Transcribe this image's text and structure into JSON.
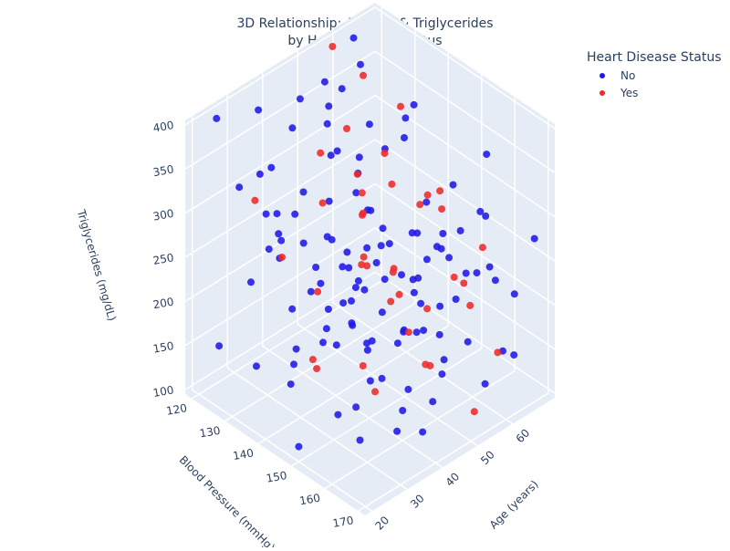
{
  "chart_data": {
    "type": "scatter",
    "title": "3D Relationship: Age, BP & Triglycerides",
    "subtitle": "by Heart Disease Status",
    "projection": "3d",
    "axes": {
      "x": {
        "label": "Age (years)",
        "range": [
          18,
          72
        ],
        "ticks": [
          20,
          30,
          40,
          50,
          60
        ]
      },
      "y": {
        "label": "Blood Pressure (mmHg)",
        "range": [
          118,
          172
        ],
        "ticks": [
          120,
          130,
          140,
          150,
          160,
          170
        ]
      },
      "z": {
        "label": "Triglycerides (mg/dL)",
        "range": [
          95,
          405
        ],
        "ticks": [
          100,
          150,
          200,
          250,
          300,
          350,
          400
        ]
      }
    },
    "legend": {
      "title": "Heart Disease Status",
      "placement": "top-right",
      "entries": [
        {
          "name": "No",
          "color": "#1f18e8"
        },
        {
          "name": "Yes",
          "color": "#ee2a2a"
        }
      ]
    },
    "series": [
      {
        "name": "No",
        "color": "#1f18e8",
        "points": [
          [
            25,
            120,
            395
          ],
          [
            35,
            122,
            385
          ],
          [
            45,
            124,
            378
          ],
          [
            55,
            126,
            370
          ],
          [
            65,
            121,
            360
          ],
          [
            22,
            130,
            350
          ],
          [
            33,
            128,
            340
          ],
          [
            48,
            132,
            332
          ],
          [
            60,
            129,
            325
          ],
          [
            28,
            135,
            318
          ],
          [
            40,
            138,
            310
          ],
          [
            52,
            134,
            302
          ],
          [
            68,
            131,
            295
          ],
          [
            24,
            140,
            290
          ],
          [
            37,
            142,
            284
          ],
          [
            50,
            139,
            278
          ],
          [
            62,
            144,
            270
          ],
          [
            30,
            146,
            262
          ],
          [
            44,
            148,
            256
          ],
          [
            57,
            145,
            250
          ],
          [
            66,
            150,
            243
          ],
          [
            26,
            152,
            236
          ],
          [
            39,
            155,
            230
          ],
          [
            53,
            151,
            224
          ],
          [
            64,
            157,
            218
          ],
          [
            32,
            158,
            212
          ],
          [
            46,
            160,
            205
          ],
          [
            59,
            156,
            198
          ],
          [
            70,
            162,
            192
          ],
          [
            23,
            164,
            185
          ],
          [
            36,
            166,
            178
          ],
          [
            49,
            163,
            172
          ],
          [
            61,
            168,
            165
          ],
          [
            29,
            170,
            158
          ],
          [
            42,
            167,
            152
          ],
          [
            55,
            169,
            145
          ],
          [
            67,
            165,
            138
          ],
          [
            27,
            161,
            130
          ],
          [
            41,
            159,
            124
          ],
          [
            56,
            155,
            118
          ],
          [
            20,
            150,
            112
          ],
          [
            34,
            147,
            106
          ],
          [
            47,
            143,
            102
          ],
          [
            63,
            140,
            110
          ],
          [
            31,
            136,
            120
          ],
          [
            43,
            133,
            130
          ],
          [
            58,
            127,
            140
          ],
          [
            69,
            123,
            150
          ],
          [
            21,
            125,
            160
          ],
          [
            38,
            129,
            170
          ],
          [
            51,
            137,
            180
          ],
          [
            65,
            141,
            190
          ],
          [
            24,
            145,
            200
          ],
          [
            36,
            149,
            210
          ],
          [
            50,
            153,
            220
          ],
          [
            60,
            158,
            230
          ],
          [
            28,
            162,
            240
          ],
          [
            45,
            166,
            250
          ],
          [
            57,
            170,
            260
          ],
          [
            70,
            168,
            270
          ],
          [
            22,
            164,
            280
          ],
          [
            35,
            160,
            290
          ],
          [
            48,
            156,
            300
          ],
          [
            62,
            152,
            310
          ],
          [
            30,
            148,
            320
          ],
          [
            42,
            144,
            330
          ],
          [
            54,
            140,
            340
          ],
          [
            66,
            136,
            350
          ],
          [
            26,
            132,
            360
          ],
          [
            39,
            128,
            370
          ],
          [
            52,
            124,
            380
          ],
          [
            64,
            120,
            390
          ],
          [
            33,
            131,
            265
          ],
          [
            46,
            143,
            255
          ],
          [
            58,
            155,
            245
          ],
          [
            40,
            134,
            225
          ],
          [
            53,
            146,
            215
          ],
          [
            44,
            138,
            185
          ],
          [
            49,
            151,
            175
          ],
          [
            37,
            157,
            165
          ],
          [
            25,
            132,
            145
          ],
          [
            61,
            149,
            135
          ],
          [
            67,
            137,
            125
          ],
          [
            54,
            123,
            115
          ],
          [
            32,
            141,
            235
          ],
          [
            47,
            163,
            305
          ],
          [
            59,
            127,
            285
          ],
          [
            38,
            153,
            195
          ],
          [
            43,
            169,
            345
          ],
          [
            56,
            121,
            335
          ],
          [
            29,
            139,
            155
          ],
          [
            63,
            161,
            365
          ],
          [
            35,
            133,
            295
          ],
          [
            51,
            147,
            145
          ],
          [
            45,
            125,
            275
          ],
          [
            60,
            135,
            205
          ],
          [
            26,
            155,
            225
          ],
          [
            48,
            129,
            355
          ],
          [
            41,
            165,
            115
          ],
          [
            57,
            143,
            375
          ],
          [
            34,
            151,
            245
          ],
          [
            65,
            157,
            285
          ],
          [
            23,
            137,
            335
          ],
          [
            52,
            167,
            195
          ],
          [
            39,
            121,
            215
          ],
          [
            44,
            159,
            265
          ],
          [
            28,
            143,
            305
          ],
          [
            55,
            131,
            165
          ],
          [
            62,
            163,
            245
          ],
          [
            36,
            127,
            255
          ],
          [
            49,
            141,
            285
          ],
          [
            42,
            152,
            310
          ],
          [
            38,
            146,
            260
          ],
          [
            47,
            136,
            230
          ],
          [
            53,
            158,
            275
          ],
          [
            31,
            124,
            205
          ],
          [
            58,
            166,
            320
          ],
          [
            46,
            154,
            188
          ],
          [
            40,
            142,
            246
          ],
          [
            50,
            128,
            312
          ]
        ]
      },
      {
        "name": "Yes",
        "color": "#ee2a2a",
        "points": [
          [
            58,
            120,
            395
          ],
          [
            45,
            138,
            380
          ],
          [
            62,
            125,
            365
          ],
          [
            38,
            150,
            355
          ],
          [
            52,
            142,
            345
          ],
          [
            66,
            132,
            338
          ],
          [
            29,
            160,
            330
          ],
          [
            47,
            128,
            322
          ],
          [
            55,
            156,
            310
          ],
          [
            41,
            135,
            298
          ],
          [
            63,
            147,
            288
          ],
          [
            35,
            121,
            280
          ],
          [
            50,
            165,
            268
          ],
          [
            44,
            153,
            258
          ],
          [
            68,
            138,
            248
          ],
          [
            32,
            143,
            240
          ],
          [
            57,
            130,
            232
          ],
          [
            48,
            159,
            222
          ],
          [
            61,
            126,
            214
          ],
          [
            39,
            168,
            204
          ],
          [
            53,
            134,
            196
          ],
          [
            66,
            151,
            186
          ],
          [
            27,
            148,
            178
          ],
          [
            46,
            162,
            170
          ],
          [
            59,
            139,
            160
          ],
          [
            36,
            156,
            150
          ],
          [
            64,
            124,
            142
          ],
          [
            43,
            145,
            134
          ],
          [
            51,
            170,
            126
          ],
          [
            69,
            158,
            118
          ],
          [
            42,
            131,
            108
          ],
          [
            55,
            141,
            300
          ],
          [
            48,
            149,
            242
          ],
          [
            60,
            163,
            272
          ],
          [
            37,
            127,
            226
          ],
          [
            49,
            137,
            316
          ],
          [
            64,
            155,
            176
          ],
          [
            31,
            166,
            290
          ],
          [
            56,
            145,
            140
          ],
          [
            45,
            160,
            350
          ]
        ]
      }
    ]
  }
}
